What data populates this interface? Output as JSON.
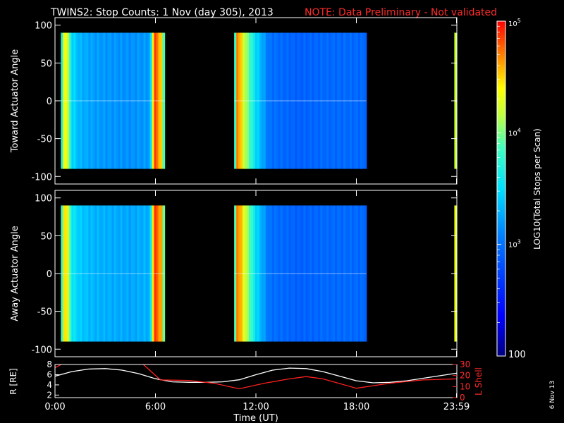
{
  "header": {
    "title": "TWINS2: Stop Counts:  1 Nov (day 305), 2013",
    "note": "NOTE: Data Preliminary - Not validated"
  },
  "colorbar": {
    "label": "LOG10(Total Stops per Scan)",
    "tick_labels": [
      "10^5",
      "10^4",
      "10^3",
      "100"
    ],
    "range": [
      100,
      100000
    ],
    "scale": "log"
  },
  "side_date": "6 Nov 13",
  "chart_data": [
    {
      "type": "heatmap",
      "name": "toward-panel",
      "ylabel": "Toward Actuator Angle",
      "ylim": [
        -110,
        110
      ],
      "yticks": [
        100,
        50,
        0,
        -50,
        -100
      ],
      "xlim": [
        0,
        24
      ],
      "data_blocks": [
        {
          "start_ut": 0.35,
          "end_ut": 6.55,
          "angle_range": [
            -90,
            90
          ],
          "profile": [
            [
              0.35,
              3.4
            ],
            [
              0.6,
              4.6
            ],
            [
              1.0,
              3.5
            ],
            [
              1.5,
              3.3
            ],
            [
              2.5,
              3.2
            ],
            [
              4.5,
              3.15
            ],
            [
              5.7,
              3.2
            ],
            [
              5.9,
              4.9
            ],
            [
              6.35,
              4.5
            ],
            [
              6.55,
              3.6
            ]
          ]
        },
        {
          "start_ut": 10.7,
          "end_ut": 18.6,
          "angle_range": [
            -90,
            90
          ],
          "profile": [
            [
              10.7,
              3.3
            ],
            [
              10.9,
              4.8
            ],
            [
              11.3,
              4.2
            ],
            [
              12.0,
              3.5
            ],
            [
              12.8,
              3.0
            ],
            [
              14.5,
              2.9
            ],
            [
              16.0,
              2.95
            ],
            [
              18.6,
              2.95
            ]
          ]
        },
        {
          "start_ut": 23.85,
          "end_ut": 24.0,
          "angle_range": [
            -90,
            90
          ],
          "profile": [
            [
              23.85,
              4.2
            ],
            [
              24.0,
              4.2
            ]
          ]
        }
      ]
    },
    {
      "type": "heatmap",
      "name": "away-panel",
      "ylabel": "Away Actuator Angle",
      "ylim": [
        -110,
        110
      ],
      "yticks": [
        100,
        50,
        0,
        -50,
        -100
      ],
      "xlim": [
        0,
        24
      ],
      "data_blocks": [
        {
          "start_ut": 0.35,
          "end_ut": 6.55,
          "angle_range": [
            -90,
            90
          ],
          "profile": [
            [
              0.35,
              3.5
            ],
            [
              0.6,
              4.7
            ],
            [
              1.0,
              3.6
            ],
            [
              1.5,
              3.4
            ],
            [
              2.5,
              3.3
            ],
            [
              4.5,
              3.25
            ],
            [
              5.7,
              3.3
            ],
            [
              5.9,
              4.9
            ],
            [
              6.35,
              4.6
            ],
            [
              6.55,
              3.7
            ]
          ]
        },
        {
          "start_ut": 10.7,
          "end_ut": 18.6,
          "angle_range": [
            -90,
            90
          ],
          "profile": [
            [
              10.7,
              3.4
            ],
            [
              10.9,
              4.8
            ],
            [
              11.3,
              4.3
            ],
            [
              12.0,
              3.5
            ],
            [
              12.8,
              3.0
            ],
            [
              14.5,
              2.9
            ],
            [
              16.0,
              2.95
            ],
            [
              18.6,
              2.95
            ]
          ]
        },
        {
          "start_ut": 23.85,
          "end_ut": 24.0,
          "angle_range": [
            -90,
            90
          ],
          "profile": [
            [
              23.85,
              4.3
            ],
            [
              24.0,
              4.3
            ]
          ]
        }
      ]
    },
    {
      "type": "line",
      "name": "orbit-panel",
      "xlabel": "Time (UT)",
      "xticks": [
        "0:00",
        "6:00",
        "12:00",
        "18:00",
        "23:59"
      ],
      "xtick_ut": [
        0,
        6,
        12,
        18,
        23.98
      ],
      "xlim": [
        0,
        24
      ],
      "ylabel_left": "R [RE]",
      "ylabel_right": "L Shell",
      "left_ylim": [
        1.5,
        8
      ],
      "left_yticks": [
        "8",
        "6",
        "4",
        "2"
      ],
      "right_ylim": [
        0,
        30
      ],
      "right_yticks": [
        "30",
        "20",
        "10",
        "0"
      ],
      "series": [
        {
          "name": "R [RE]",
          "axis": "left",
          "color": "#ffffff",
          "x": [
            0,
            1,
            2,
            3,
            4,
            5,
            6,
            7,
            8,
            9,
            10,
            11,
            12,
            13,
            14,
            15,
            16,
            17,
            18,
            19,
            20,
            21,
            22,
            23,
            24
          ],
          "y": [
            5.7,
            6.6,
            7.1,
            7.2,
            6.9,
            6.2,
            5.2,
            4.6,
            4.5,
            4.5,
            4.6,
            5.0,
            6.0,
            6.9,
            7.3,
            7.2,
            6.6,
            5.7,
            4.8,
            4.4,
            4.5,
            4.8,
            5.3,
            5.8,
            6.3
          ]
        },
        {
          "name": "L Shell",
          "axis": "right",
          "color": "#ff2020",
          "x": [
            0,
            0.5,
            5.2,
            6.3,
            8,
            9.5,
            11,
            12.5,
            14,
            15,
            16,
            18,
            20,
            22,
            24
          ],
          "y": [
            27,
            31,
            31,
            16,
            15.5,
            13,
            8,
            13,
            17,
            19,
            17,
            8.5,
            13,
            16,
            17
          ]
        }
      ]
    }
  ]
}
